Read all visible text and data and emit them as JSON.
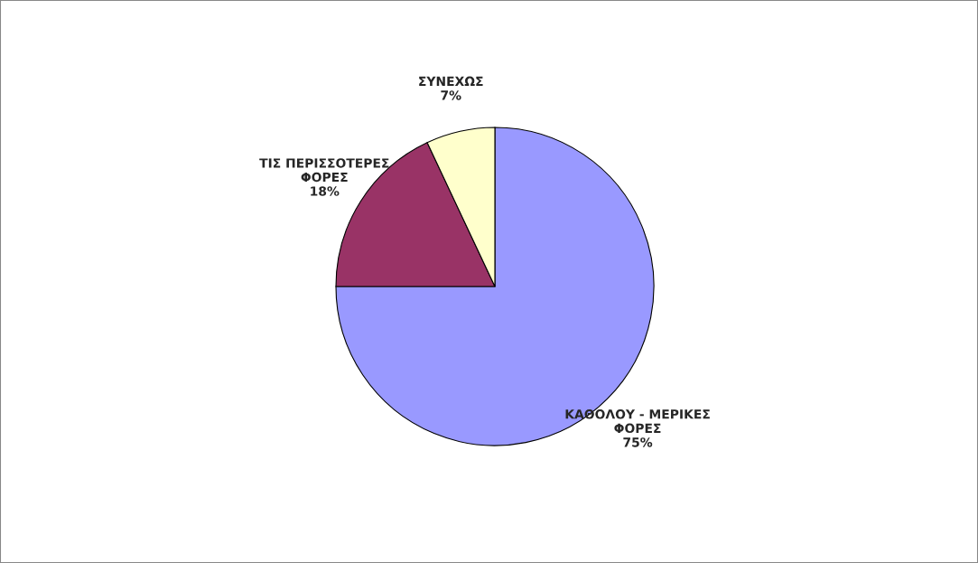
{
  "chart_data": {
    "type": "pie",
    "categories": [
      "ΚΑΘΟΛΟΥ - ΜΕΡΙΚΕΣ ΦΟΡΕΣ",
      "ΤΙΣ ΠΕΡΙΣΣΟΤΕΡΕΣ ΦΟΡΕΣ",
      "ΣΥΝΕΧΩΣ"
    ],
    "values": [
      75,
      18,
      7
    ],
    "colors": [
      "#9999ff",
      "#993366",
      "#ffffcc"
    ],
    "value_labels": [
      "75%",
      "18%",
      "7%"
    ]
  }
}
